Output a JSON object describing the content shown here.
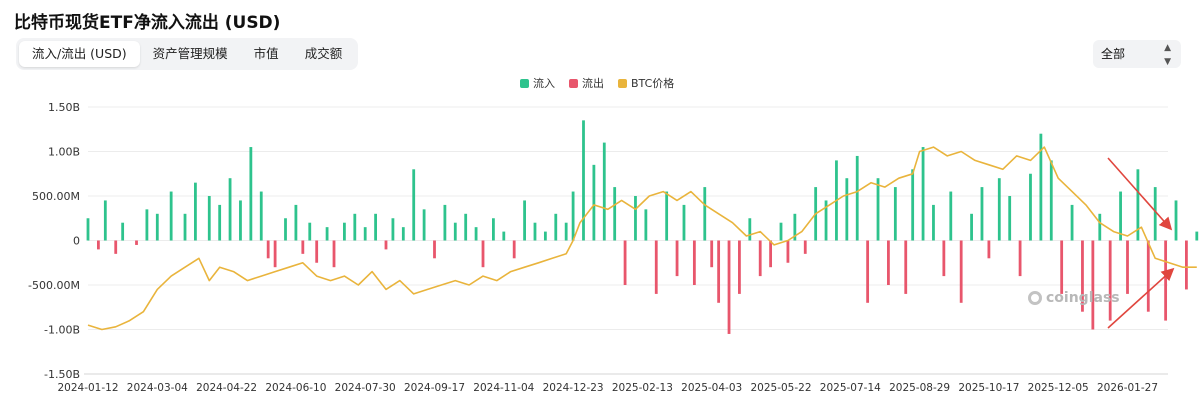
{
  "title": "比特币现货ETF净流入流出 (USD)",
  "tabs": [
    {
      "label": "流入/流出 (USD)",
      "active": true
    },
    {
      "label": "资产管理规模",
      "active": false
    },
    {
      "label": "市值",
      "active": false
    },
    {
      "label": "成交额",
      "active": false
    }
  ],
  "filter": {
    "selected": "全部",
    "icon": "chevron-updown-icon"
  },
  "watermark": "coinglass",
  "colors": {
    "inflow": "#2ec38d",
    "outflow": "#e8566c",
    "price": "#e9b43c",
    "arrow": "#e0463e"
  },
  "chart_data": {
    "type": "bar",
    "title": "比特币现货ETF净流入流出 (USD)",
    "legend": [
      "流入",
      "流出",
      "BTC价格"
    ],
    "legend_position": "top-center",
    "y_ticks": [
      "1.50B",
      "1.00B",
      "500.00M",
      "0",
      "-500.00M",
      "-1.00B",
      "-1.50B"
    ],
    "ylim": [
      -1.5,
      1.5
    ],
    "y_unit": "B USD",
    "x_ticks": [
      "2024-01-12",
      "2024-03-04",
      "2024-04-22",
      "2024-06-10",
      "2024-07-30",
      "2024-09-17",
      "2024-11-04",
      "2024-12-23",
      "2025-02-13",
      "2025-04-03",
      "2025-05-22",
      "2025-07-14",
      "2025-08-29",
      "2025-10-17",
      "2025-12-05",
      "2026-01-27"
    ],
    "flows": [
      {
        "x": 0.0,
        "v": 0.25
      },
      {
        "x": 0.15,
        "v": -0.1
      },
      {
        "x": 0.25,
        "v": 0.45
      },
      {
        "x": 0.4,
        "v": -0.15
      },
      {
        "x": 0.5,
        "v": 0.2
      },
      {
        "x": 0.7,
        "v": -0.05
      },
      {
        "x": 0.85,
        "v": 0.35
      },
      {
        "x": 1.0,
        "v": 0.3
      },
      {
        "x": 1.2,
        "v": 0.55
      },
      {
        "x": 1.4,
        "v": 0.3
      },
      {
        "x": 1.55,
        "v": 0.65
      },
      {
        "x": 1.75,
        "v": 0.5
      },
      {
        "x": 1.9,
        "v": 0.4
      },
      {
        "x": 2.05,
        "v": 0.7
      },
      {
        "x": 2.2,
        "v": 0.45
      },
      {
        "x": 2.35,
        "v": 1.05
      },
      {
        "x": 2.5,
        "v": 0.55
      },
      {
        "x": 2.6,
        "v": -0.2
      },
      {
        "x": 2.7,
        "v": -0.3
      },
      {
        "x": 2.85,
        "v": 0.25
      },
      {
        "x": 3.0,
        "v": 0.4
      },
      {
        "x": 3.1,
        "v": -0.15
      },
      {
        "x": 3.2,
        "v": 0.2
      },
      {
        "x": 3.3,
        "v": -0.25
      },
      {
        "x": 3.45,
        "v": 0.15
      },
      {
        "x": 3.55,
        "v": -0.3
      },
      {
        "x": 3.7,
        "v": 0.2
      },
      {
        "x": 3.85,
        "v": 0.3
      },
      {
        "x": 4.0,
        "v": 0.15
      },
      {
        "x": 4.15,
        "v": 0.3
      },
      {
        "x": 4.3,
        "v": -0.1
      },
      {
        "x": 4.4,
        "v": 0.25
      },
      {
        "x": 4.55,
        "v": 0.15
      },
      {
        "x": 4.7,
        "v": 0.8
      },
      {
        "x": 4.85,
        "v": 0.35
      },
      {
        "x": 5.0,
        "v": -0.2
      },
      {
        "x": 5.15,
        "v": 0.4
      },
      {
        "x": 5.3,
        "v": 0.2
      },
      {
        "x": 5.45,
        "v": 0.3
      },
      {
        "x": 5.6,
        "v": 0.15
      },
      {
        "x": 5.7,
        "v": -0.3
      },
      {
        "x": 5.85,
        "v": 0.25
      },
      {
        "x": 6.0,
        "v": 0.1
      },
      {
        "x": 6.15,
        "v": -0.2
      },
      {
        "x": 6.3,
        "v": 0.45
      },
      {
        "x": 6.45,
        "v": 0.2
      },
      {
        "x": 6.6,
        "v": 0.1
      },
      {
        "x": 6.75,
        "v": 0.3
      },
      {
        "x": 6.9,
        "v": 0.2
      },
      {
        "x": 7.0,
        "v": 0.55
      },
      {
        "x": 7.15,
        "v": 1.35
      },
      {
        "x": 7.3,
        "v": 0.85
      },
      {
        "x": 7.45,
        "v": 1.1
      },
      {
        "x": 7.6,
        "v": 0.6
      },
      {
        "x": 7.75,
        "v": -0.5
      },
      {
        "x": 7.9,
        "v": 0.5
      },
      {
        "x": 8.05,
        "v": 0.35
      },
      {
        "x": 8.2,
        "v": -0.6
      },
      {
        "x": 8.35,
        "v": 0.55
      },
      {
        "x": 8.5,
        "v": -0.4
      },
      {
        "x": 8.6,
        "v": 0.4
      },
      {
        "x": 8.75,
        "v": -0.5
      },
      {
        "x": 8.9,
        "v": 0.6
      },
      {
        "x": 9.0,
        "v": -0.3
      },
      {
        "x": 9.1,
        "v": -0.7
      },
      {
        "x": 9.25,
        "v": -1.05
      },
      {
        "x": 9.4,
        "v": -0.6
      },
      {
        "x": 9.55,
        "v": 0.25
      },
      {
        "x": 9.7,
        "v": -0.4
      },
      {
        "x": 9.85,
        "v": -0.3
      },
      {
        "x": 10.0,
        "v": 0.2
      },
      {
        "x": 10.1,
        "v": -0.25
      },
      {
        "x": 10.2,
        "v": 0.3
      },
      {
        "x": 10.35,
        "v": -0.15
      },
      {
        "x": 10.5,
        "v": 0.6
      },
      {
        "x": 10.65,
        "v": 0.45
      },
      {
        "x": 10.8,
        "v": 0.9
      },
      {
        "x": 10.95,
        "v": 0.7
      },
      {
        "x": 11.1,
        "v": 0.95
      },
      {
        "x": 11.25,
        "v": -0.7
      },
      {
        "x": 11.4,
        "v": 0.7
      },
      {
        "x": 11.55,
        "v": -0.5
      },
      {
        "x": 11.65,
        "v": 0.6
      },
      {
        "x": 11.8,
        "v": -0.6
      },
      {
        "x": 11.9,
        "v": 0.8
      },
      {
        "x": 12.05,
        "v": 1.05
      },
      {
        "x": 12.2,
        "v": 0.4
      },
      {
        "x": 12.35,
        "v": -0.4
      },
      {
        "x": 12.45,
        "v": 0.55
      },
      {
        "x": 12.6,
        "v": -0.7
      },
      {
        "x": 12.75,
        "v": 0.3
      },
      {
        "x": 12.9,
        "v": 0.6
      },
      {
        "x": 13.0,
        "v": -0.2
      },
      {
        "x": 13.15,
        "v": 0.7
      },
      {
        "x": 13.3,
        "v": 0.5
      },
      {
        "x": 13.45,
        "v": -0.4
      },
      {
        "x": 13.6,
        "v": 0.75
      },
      {
        "x": 13.75,
        "v": 1.2
      },
      {
        "x": 13.9,
        "v": 0.9
      },
      {
        "x": 14.05,
        "v": -0.6
      },
      {
        "x": 14.2,
        "v": 0.4
      },
      {
        "x": 14.35,
        "v": -0.8
      },
      {
        "x": 14.5,
        "v": -1.0
      },
      {
        "x": 14.6,
        "v": 0.3
      },
      {
        "x": 14.75,
        "v": -0.9
      },
      {
        "x": 14.9,
        "v": 0.55
      },
      {
        "x": 15.0,
        "v": -0.6
      },
      {
        "x": 15.15,
        "v": 0.8
      },
      {
        "x": 15.3,
        "v": -0.8
      },
      {
        "x": 15.4,
        "v": 0.6
      },
      {
        "x": 15.55,
        "v": -0.9
      },
      {
        "x": 15.7,
        "v": 0.45
      },
      {
        "x": 15.85,
        "v": -0.55
      },
      {
        "x": 16.0,
        "v": 0.1
      }
    ],
    "btc_price": [
      {
        "x": 0.0,
        "p": -0.95
      },
      {
        "x": 0.2,
        "p": -1.0
      },
      {
        "x": 0.4,
        "p": -0.97
      },
      {
        "x": 0.6,
        "p": -0.9
      },
      {
        "x": 0.8,
        "p": -0.8
      },
      {
        "x": 1.0,
        "p": -0.55
      },
      {
        "x": 1.2,
        "p": -0.4
      },
      {
        "x": 1.4,
        "p": -0.3
      },
      {
        "x": 1.6,
        "p": -0.2
      },
      {
        "x": 1.75,
        "p": -0.45
      },
      {
        "x": 1.9,
        "p": -0.3
      },
      {
        "x": 2.1,
        "p": -0.35
      },
      {
        "x": 2.3,
        "p": -0.45
      },
      {
        "x": 2.5,
        "p": -0.4
      },
      {
        "x": 2.7,
        "p": -0.35
      },
      {
        "x": 2.9,
        "p": -0.3
      },
      {
        "x": 3.1,
        "p": -0.25
      },
      {
        "x": 3.3,
        "p": -0.4
      },
      {
        "x": 3.5,
        "p": -0.45
      },
      {
        "x": 3.7,
        "p": -0.4
      },
      {
        "x": 3.9,
        "p": -0.5
      },
      {
        "x": 4.1,
        "p": -0.35
      },
      {
        "x": 4.3,
        "p": -0.55
      },
      {
        "x": 4.5,
        "p": -0.45
      },
      {
        "x": 4.7,
        "p": -0.6
      },
      {
        "x": 4.9,
        "p": -0.55
      },
      {
        "x": 5.1,
        "p": -0.5
      },
      {
        "x": 5.3,
        "p": -0.45
      },
      {
        "x": 5.5,
        "p": -0.5
      },
      {
        "x": 5.7,
        "p": -0.4
      },
      {
        "x": 5.9,
        "p": -0.45
      },
      {
        "x": 6.1,
        "p": -0.35
      },
      {
        "x": 6.3,
        "p": -0.3
      },
      {
        "x": 6.5,
        "p": -0.25
      },
      {
        "x": 6.7,
        "p": -0.2
      },
      {
        "x": 6.9,
        "p": -0.15
      },
      {
        "x": 7.0,
        "p": 0.0
      },
      {
        "x": 7.1,
        "p": 0.2
      },
      {
        "x": 7.3,
        "p": 0.4
      },
      {
        "x": 7.5,
        "p": 0.35
      },
      {
        "x": 7.7,
        "p": 0.45
      },
      {
        "x": 7.9,
        "p": 0.35
      },
      {
        "x": 8.1,
        "p": 0.5
      },
      {
        "x": 8.3,
        "p": 0.55
      },
      {
        "x": 8.5,
        "p": 0.45
      },
      {
        "x": 8.7,
        "p": 0.55
      },
      {
        "x": 8.9,
        "p": 0.4
      },
      {
        "x": 9.1,
        "p": 0.3
      },
      {
        "x": 9.3,
        "p": 0.2
      },
      {
        "x": 9.5,
        "p": 0.05
      },
      {
        "x": 9.7,
        "p": 0.1
      },
      {
        "x": 9.9,
        "p": -0.05
      },
      {
        "x": 10.1,
        "p": 0.0
      },
      {
        "x": 10.3,
        "p": 0.1
      },
      {
        "x": 10.5,
        "p": 0.3
      },
      {
        "x": 10.7,
        "p": 0.4
      },
      {
        "x": 10.9,
        "p": 0.5
      },
      {
        "x": 11.1,
        "p": 0.55
      },
      {
        "x": 11.3,
        "p": 0.65
      },
      {
        "x": 11.5,
        "p": 0.6
      },
      {
        "x": 11.7,
        "p": 0.7
      },
      {
        "x": 11.9,
        "p": 0.75
      },
      {
        "x": 12.0,
        "p": 1.0
      },
      {
        "x": 12.2,
        "p": 1.05
      },
      {
        "x": 12.4,
        "p": 0.95
      },
      {
        "x": 12.6,
        "p": 1.0
      },
      {
        "x": 12.8,
        "p": 0.9
      },
      {
        "x": 13.0,
        "p": 0.85
      },
      {
        "x": 13.2,
        "p": 0.8
      },
      {
        "x": 13.4,
        "p": 0.95
      },
      {
        "x": 13.6,
        "p": 0.9
      },
      {
        "x": 13.8,
        "p": 1.05
      },
      {
        "x": 14.0,
        "p": 0.7
      },
      {
        "x": 14.2,
        "p": 0.55
      },
      {
        "x": 14.4,
        "p": 0.4
      },
      {
        "x": 14.6,
        "p": 0.2
      },
      {
        "x": 14.8,
        "p": 0.1
      },
      {
        "x": 15.0,
        "p": 0.05
      },
      {
        "x": 15.2,
        "p": 0.15
      },
      {
        "x": 15.4,
        "p": -0.2
      },
      {
        "x": 15.6,
        "p": -0.25
      },
      {
        "x": 15.8,
        "p": -0.3
      },
      {
        "x": 16.0,
        "p": -0.3
      }
    ]
  }
}
